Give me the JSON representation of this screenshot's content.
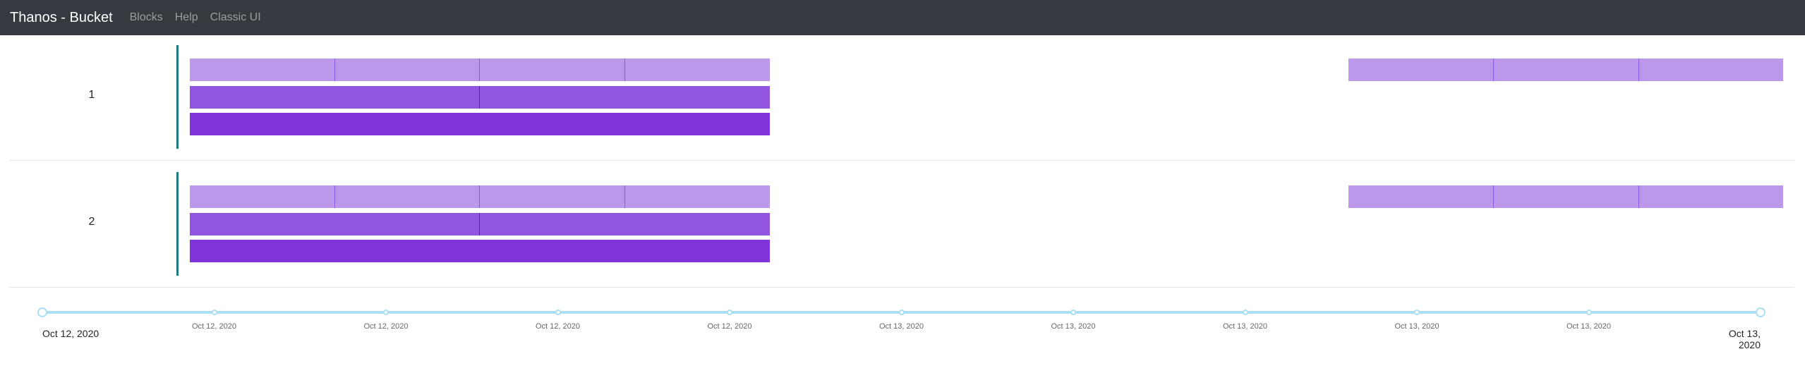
{
  "navbar": {
    "brand": "Thanos - Bucket",
    "links": [
      "Blocks",
      "Help",
      "Classic UI"
    ]
  },
  "groups": [
    {
      "label": "1",
      "levels": [
        {
          "level": 1,
          "blocks": [
            [
              269,
              474
            ],
            [
              474,
              679
            ],
            [
              679,
              885
            ],
            [
              885,
              1091
            ],
            [
              1911,
              2116
            ],
            [
              2116,
              2322
            ],
            [
              2322,
              2527
            ]
          ]
        },
        {
          "level": 2,
          "blocks": [
            [
              269,
              679
            ],
            [
              679,
              1091
            ]
          ]
        },
        {
          "level": 3,
          "blocks": [
            [
              269,
              1091
            ]
          ]
        }
      ]
    },
    {
      "label": "2",
      "levels": [
        {
          "level": 1,
          "blocks": [
            [
              269,
              474
            ],
            [
              474,
              679
            ],
            [
              679,
              885
            ],
            [
              885,
              1091
            ],
            [
              1911,
              2116
            ],
            [
              2116,
              2322
            ],
            [
              2322,
              2527
            ]
          ]
        },
        {
          "level": 2,
          "blocks": [
            [
              269,
              679
            ],
            [
              679,
              1091
            ]
          ]
        },
        {
          "level": 3,
          "blocks": [
            [
              269,
              1091
            ]
          ]
        }
      ]
    }
  ],
  "timeline": {
    "start_label": "Oct 12, 2020",
    "end_label": "Oct 13, 2020",
    "ticks": [
      "Oct 12, 2020",
      "Oct 12, 2020",
      "Oct 12, 2020",
      "Oct 12, 2020",
      "Oct 13, 2020",
      "Oct 13, 2020",
      "Oct 13, 2020",
      "Oct 13, 2020",
      "Oct 13, 2020"
    ]
  },
  "colors": {
    "navbar": "#343a40",
    "level1": "#bd98ea",
    "level2": "#9155e0",
    "level3": "#7e34d8",
    "group_line": "#1a7a7a",
    "slider_track": "#abdff5"
  }
}
